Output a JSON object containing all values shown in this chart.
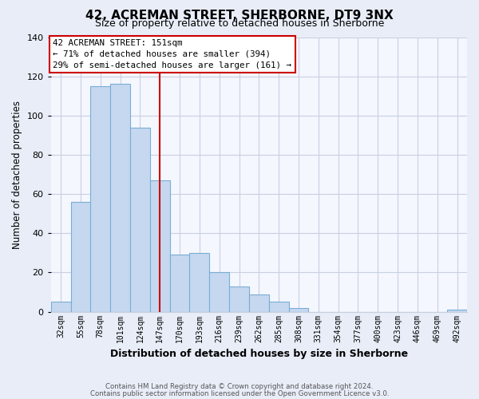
{
  "title": "42, ACREMAN STREET, SHERBORNE, DT9 3NX",
  "subtitle": "Size of property relative to detached houses in Sherborne",
  "xlabel": "Distribution of detached houses by size in Sherborne",
  "ylabel": "Number of detached properties",
  "categories": [
    "32sqm",
    "55sqm",
    "78sqm",
    "101sqm",
    "124sqm",
    "147sqm",
    "170sqm",
    "193sqm",
    "216sqm",
    "239sqm",
    "262sqm",
    "285sqm",
    "308sqm",
    "331sqm",
    "354sqm",
    "377sqm",
    "400sqm",
    "423sqm",
    "446sqm",
    "469sqm",
    "492sqm"
  ],
  "values": [
    5,
    56,
    115,
    116,
    94,
    67,
    29,
    30,
    20,
    13,
    9,
    5,
    2,
    0,
    0,
    0,
    0,
    0,
    0,
    0,
    1
  ],
  "bar_color": "#c5d8f0",
  "bar_edge_color": "#7aadd4",
  "vline_x": 5,
  "vline_color": "#cc0000",
  "annotation_title": "42 ACREMAN STREET: 151sqm",
  "annotation_line1": "← 71% of detached houses are smaller (394)",
  "annotation_line2": "29% of semi-detached houses are larger (161) →",
  "annotation_box_color": "#ffffff",
  "annotation_box_edgecolor": "#cc0000",
  "ylim": [
    0,
    140
  ],
  "yticks": [
    0,
    20,
    40,
    60,
    80,
    100,
    120,
    140
  ],
  "footer1": "Contains HM Land Registry data © Crown copyright and database right 2024.",
  "footer2": "Contains public sector information licensed under the Open Government Licence v3.0.",
  "background_color": "#e8edf8",
  "plot_bg_color": "#f5f7ff",
  "grid_color": "#c8d0e0"
}
